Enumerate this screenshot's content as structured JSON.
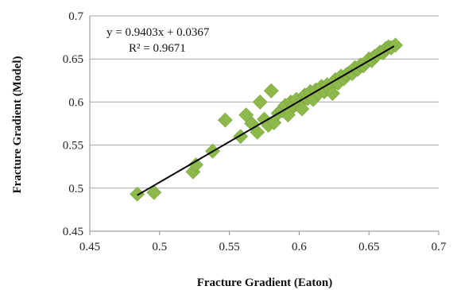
{
  "chart_data": {
    "type": "scatter",
    "title": "",
    "xlabel": "Fracture Gradient (Eaton)",
    "ylabel": "Fracture Gradient (Model)",
    "xlim": [
      0.45,
      0.7
    ],
    "ylim": [
      0.45,
      0.7
    ],
    "x_ticks": [
      "0.45",
      "0.5",
      "0.55",
      "0.6",
      "0.65",
      "0.7"
    ],
    "y_ticks": [
      "0.45",
      "0.5",
      "0.55",
      "0.6",
      "0.65",
      "0.7"
    ],
    "grid": "horizontal",
    "legend": "none",
    "marker": "diamond",
    "marker_color": "#8db84a",
    "trendline": {
      "equation": "y = 0.9403x + 0.0367",
      "r_squared": "R² = 0.9671",
      "slope": 0.9403,
      "intercept": 0.0367,
      "x_range": [
        0.484,
        0.668
      ],
      "color": "#000000"
    },
    "points": [
      [
        0.484,
        0.493
      ],
      [
        0.496,
        0.495
      ],
      [
        0.524,
        0.519
      ],
      [
        0.526,
        0.527
      ],
      [
        0.538,
        0.543
      ],
      [
        0.547,
        0.579
      ],
      [
        0.558,
        0.56
      ],
      [
        0.562,
        0.585
      ],
      [
        0.566,
        0.575
      ],
      [
        0.57,
        0.565
      ],
      [
        0.572,
        0.6
      ],
      [
        0.575,
        0.58
      ],
      [
        0.578,
        0.573
      ],
      [
        0.58,
        0.613
      ],
      [
        0.582,
        0.576
      ],
      [
        0.585,
        0.587
      ],
      [
        0.588,
        0.59
      ],
      [
        0.59,
        0.596
      ],
      [
        0.592,
        0.585
      ],
      [
        0.594,
        0.6
      ],
      [
        0.596,
        0.595
      ],
      [
        0.598,
        0.603
      ],
      [
        0.6,
        0.598
      ],
      [
        0.602,
        0.592
      ],
      [
        0.604,
        0.608
      ],
      [
        0.606,
        0.604
      ],
      [
        0.608,
        0.612
      ],
      [
        0.61,
        0.603
      ],
      [
        0.612,
        0.614
      ],
      [
        0.614,
        0.61
      ],
      [
        0.616,
        0.618
      ],
      [
        0.618,
        0.612
      ],
      [
        0.62,
        0.62
      ],
      [
        0.622,
        0.616
      ],
      [
        0.624,
        0.61
      ],
      [
        0.626,
        0.626
      ],
      [
        0.628,
        0.622
      ],
      [
        0.63,
        0.63
      ],
      [
        0.632,
        0.627
      ],
      [
        0.634,
        0.632
      ],
      [
        0.636,
        0.634
      ],
      [
        0.638,
        0.633
      ],
      [
        0.64,
        0.64
      ],
      [
        0.642,
        0.638
      ],
      [
        0.644,
        0.643
      ],
      [
        0.646,
        0.642
      ],
      [
        0.648,
        0.646
      ],
      [
        0.65,
        0.65
      ],
      [
        0.652,
        0.648
      ],
      [
        0.654,
        0.653
      ],
      [
        0.656,
        0.655
      ],
      [
        0.658,
        0.658
      ],
      [
        0.66,
        0.657
      ],
      [
        0.662,
        0.662
      ],
      [
        0.664,
        0.664
      ],
      [
        0.666,
        0.663
      ],
      [
        0.669,
        0.666
      ]
    ]
  }
}
